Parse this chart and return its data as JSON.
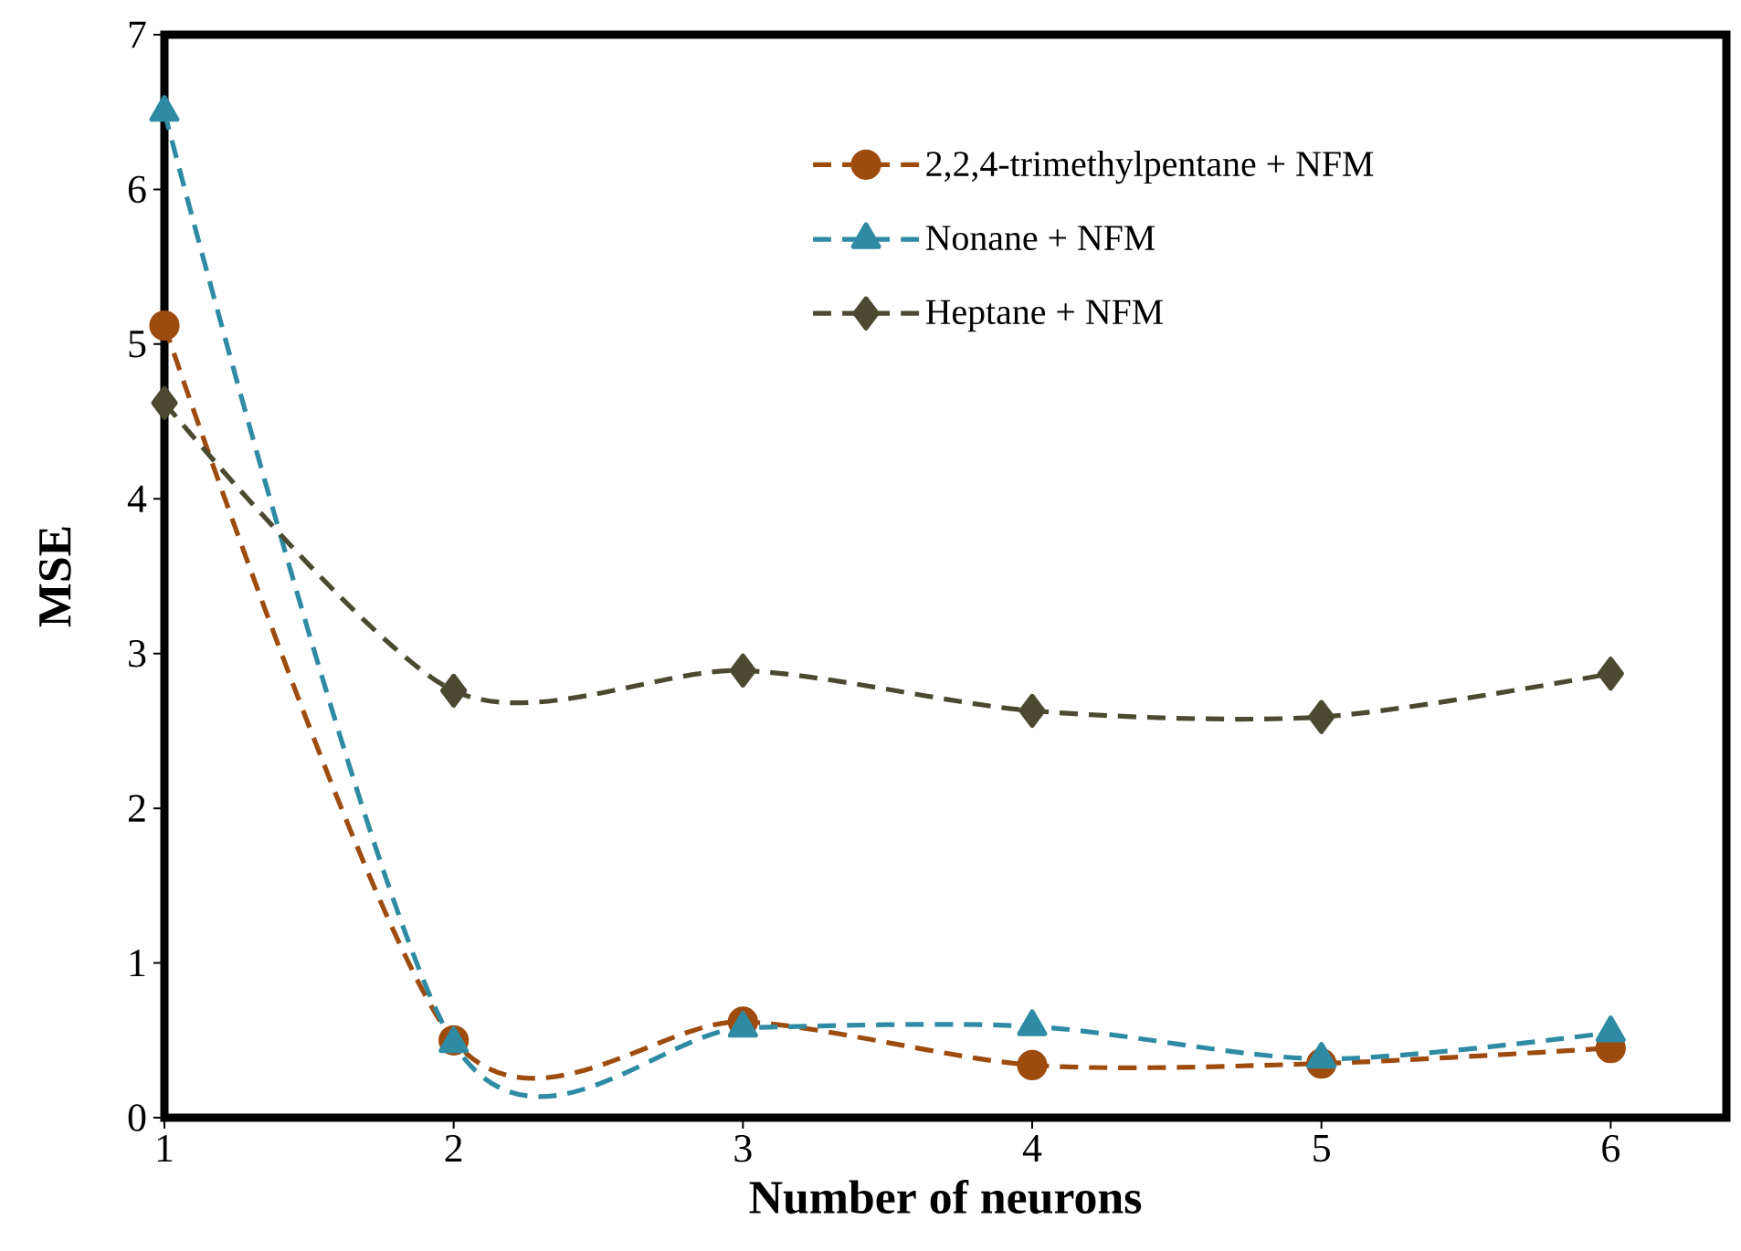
{
  "chart_data": {
    "type": "line",
    "xlabel": "Number of neurons",
    "ylabel": "MSE",
    "x": [
      1,
      2,
      3,
      4,
      5,
      6
    ],
    "xlim": [
      1,
      6.4
    ],
    "xticks": [
      1,
      2,
      3,
      4,
      5,
      6
    ],
    "ylim": [
      0,
      7
    ],
    "yticks": [
      0,
      1,
      2,
      3,
      4,
      5,
      6,
      7
    ],
    "legend": "top right",
    "line_style": "dashed",
    "series": [
      {
        "name": "2,2,4-trimethylpentane + NFM",
        "color": "#9e4b0e",
        "marker": "circle",
        "values": [
          5.12,
          0.5,
          0.62,
          0.34,
          0.35,
          0.45
        ]
      },
      {
        "name": "Nonane + NFM",
        "color": "#2e8ba3",
        "marker": "triangle",
        "values": [
          6.5,
          0.48,
          0.58,
          0.59,
          0.38,
          0.55
        ]
      },
      {
        "name": "Heptane + NFM",
        "color": "#4b4a30",
        "marker": "diamond",
        "values": [
          4.62,
          2.76,
          2.89,
          2.63,
          2.59,
          2.87
        ]
      }
    ]
  }
}
